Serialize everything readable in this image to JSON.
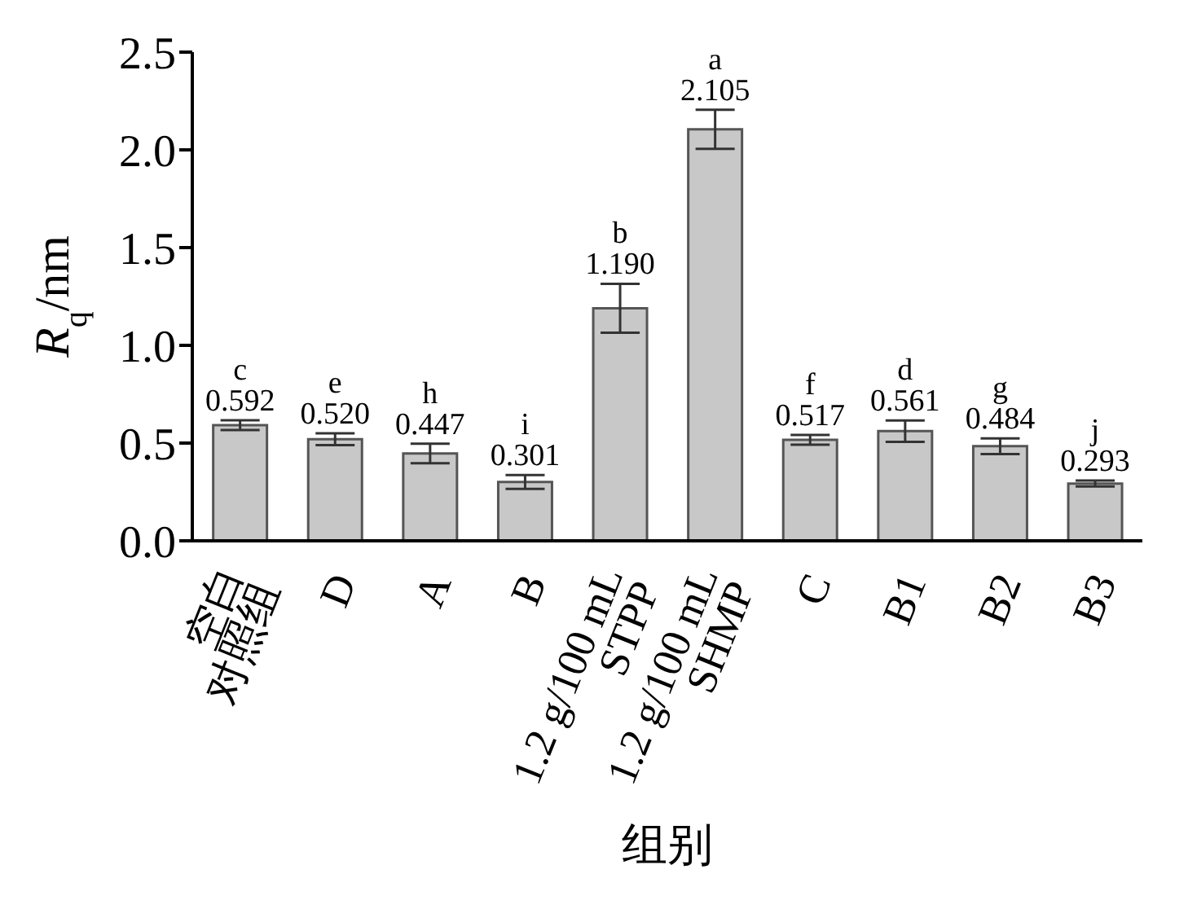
{
  "chart_data": {
    "type": "bar",
    "xlabel": "组别",
    "ylabel": "R$_{q}$/nm",
    "categories": [
      "空白\n对照组",
      "D",
      "A",
      "B",
      "1.2 g/100 mL\nSTPP",
      "1.2 g/100 mL\nSHMP",
      "C",
      "B1",
      "B2",
      "B3"
    ],
    "values": [
      0.592,
      0.52,
      0.447,
      0.301,
      1.19,
      2.105,
      0.517,
      0.561,
      0.484,
      0.293
    ],
    "errors": [
      0.025,
      0.03,
      0.05,
      0.035,
      0.125,
      0.1,
      0.025,
      0.055,
      0.04,
      0.015
    ],
    "value_labels": [
      "c\n0.592",
      "e\n0.520",
      "h\n0.447",
      "i\n0.301",
      "b\n1.190",
      "a\n2.105",
      "f\n0.517",
      "d\n0.561",
      "g\n0.484",
      "j\n0.293"
    ],
    "color": "#c8c8c8",
    "ylim": [
      0,
      2.5
    ],
    "yticks": [
      {
        "value": 0,
        "label": "0.0"
      },
      {
        "value": 0.5,
        "label": "0.5"
      },
      {
        "value": 1,
        "label": "1.0"
      },
      {
        "value": 1.5,
        "label": "1.5"
      },
      {
        "value": 2,
        "label": "2.0"
      },
      {
        "value": 2.5,
        "label": "2.5"
      }
    ],
    "grid": false,
    "legend": false
  }
}
